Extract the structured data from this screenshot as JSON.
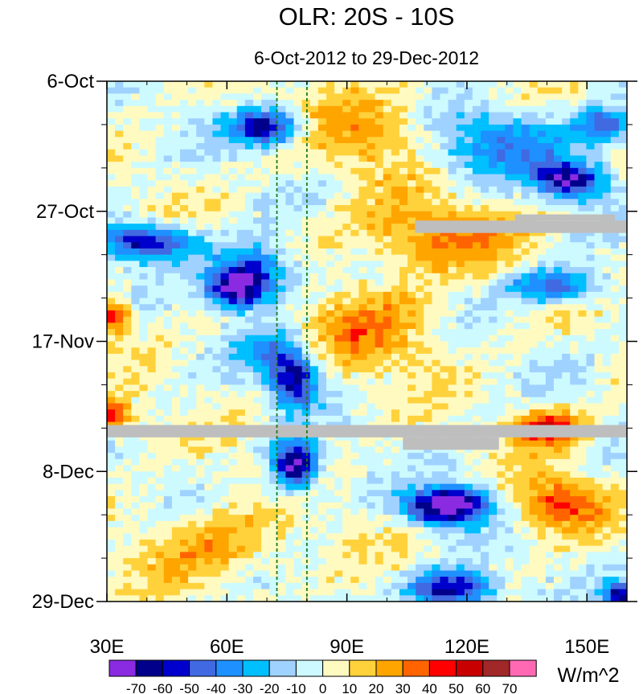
{
  "chart_data": {
    "type": "heatmap",
    "title": "OLR: 20S - 10S",
    "subtitle": "6-Oct-2012 to 29-Dec-2012",
    "xlabel": "",
    "ylabel": "",
    "x_range": [
      30,
      160
    ],
    "x_ticks": [
      {
        "value": 30,
        "label": "30E"
      },
      {
        "value": 60,
        "label": "60E"
      },
      {
        "value": 90,
        "label": "90E"
      },
      {
        "value": 120,
        "label": "120E"
      },
      {
        "value": 150,
        "label": "150E"
      }
    ],
    "y_range_days": [
      0,
      84
    ],
    "y_ticks": [
      {
        "day": 0,
        "label": "6-Oct"
      },
      {
        "day": 21,
        "label": "27-Oct"
      },
      {
        "day": 42,
        "label": "17-Nov"
      },
      {
        "day": 63,
        "label": "8-Dec"
      },
      {
        "day": 84,
        "label": "29-Dec"
      }
    ],
    "reference_lines_lon": [
      72.5,
      80
    ],
    "colorbar": {
      "unit_label": "W/m^2",
      "levels": [
        "-70",
        "-60",
        "-50",
        "-40",
        "-30",
        "-20",
        "-10",
        "0",
        "10",
        "20",
        "30",
        "40",
        "50",
        "60",
        "70"
      ],
      "colors": [
        "#8a2be2",
        "#00008b",
        "#0000cd",
        "#4169e1",
        "#1e90ff",
        "#00bfff",
        "#a0d2ff",
        "#cdfaff",
        "#fffac0",
        "#ffd23c",
        "#ffa500",
        "#ff6400",
        "#ff0000",
        "#c80000",
        "#a02828",
        "#ff69b4"
      ]
    },
    "missing_data_bands": [
      {
        "lon_start": 107,
        "lon_end": 160,
        "day_start": 22.5,
        "day_end": 24.5
      },
      {
        "lon_start": 132,
        "lon_end": 157,
        "day_start": 21.5,
        "day_end": 22.5
      },
      {
        "lon_start": 30,
        "lon_end": 160,
        "day_start": 55.5,
        "day_end": 57.5
      },
      {
        "lon_start": 104,
        "lon_end": 128,
        "day_start": 57.5,
        "day_end": 59.5
      }
    ],
    "anomaly_features": [
      {
        "lon": 70,
        "day": 7.5,
        "value": -70,
        "spread_lon": 6,
        "spread_day": 2
      },
      {
        "lon": 128,
        "day": 10,
        "value": -35,
        "spread_lon": 14,
        "spread_day": 4
      },
      {
        "lon": 146,
        "day": 16,
        "value": -70,
        "spread_lon": 6,
        "spread_day": 2
      },
      {
        "lon": 155,
        "day": 7,
        "value": -45,
        "spread_lon": 5,
        "spread_day": 2
      },
      {
        "lon": 40,
        "day": 26,
        "value": -65,
        "spread_lon": 8,
        "spread_day": 2
      },
      {
        "lon": 66,
        "day": 31,
        "value": -60,
        "spread_lon": 7,
        "spread_day": 3
      },
      {
        "lon": 62,
        "day": 34,
        "value": -55,
        "spread_lon": 5,
        "spread_day": 2
      },
      {
        "lon": 142,
        "day": 33,
        "value": -50,
        "spread_lon": 8,
        "spread_day": 2
      },
      {
        "lon": 72,
        "day": 44,
        "value": -35,
        "spread_lon": 6,
        "spread_day": 3
      },
      {
        "lon": 77,
        "day": 48.5,
        "value": -60,
        "spread_lon": 4,
        "spread_day": 3
      },
      {
        "lon": 77,
        "day": 62,
        "value": -75,
        "spread_lon": 4,
        "spread_day": 3
      },
      {
        "lon": 118,
        "day": 68,
        "value": -60,
        "spread_lon": 6,
        "spread_day": 2
      },
      {
        "lon": 112,
        "day": 69,
        "value": -50,
        "spread_lon": 6,
        "spread_day": 2
      },
      {
        "lon": 116,
        "day": 82,
        "value": -70,
        "spread_lon": 7,
        "spread_day": 2
      },
      {
        "lon": 158,
        "day": 83,
        "value": -60,
        "spread_lon": 3,
        "spread_day": 1.5
      },
      {
        "lon": 97,
        "day": 8,
        "value": 25,
        "spread_lon": 12,
        "spread_day": 5
      },
      {
        "lon": 112,
        "day": 25,
        "value": 30,
        "spread_lon": 14,
        "spread_day": 4
      },
      {
        "lon": 96,
        "day": 40,
        "value": 25,
        "spread_lon": 12,
        "spread_day": 5
      },
      {
        "lon": 32,
        "day": 38,
        "value": 45,
        "spread_lon": 3,
        "spread_day": 2
      },
      {
        "lon": 32,
        "day": 54,
        "value": 45,
        "spread_lon": 3,
        "spread_day": 2
      },
      {
        "lon": 140,
        "day": 56,
        "value": 50,
        "spread_lon": 6,
        "spread_day": 2
      },
      {
        "lon": 143,
        "day": 68,
        "value": 40,
        "spread_lon": 8,
        "spread_day": 3
      },
      {
        "lon": 56,
        "day": 75,
        "value": 25,
        "spread_lon": 12,
        "spread_day": 4
      }
    ]
  }
}
